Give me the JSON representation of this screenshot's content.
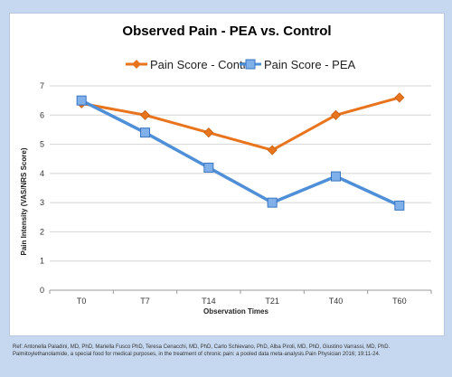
{
  "citation": "Ref: Antonella Paladini, MD, PhD, Mariella Fusco PhD, Teresa Cenacchi, MD, PhD, Carlo Schievano, PhD, Alba Piroli, MD, PhD, Giustino Varrassi, MD, PhD. Palmitoylethanolamide, a special food for medical purposes, in the treatment of chronic pain: a pooled data meta-analysis.Pain Physician 2016; 19:11-24.",
  "colors": {
    "control": "#e8751e",
    "pea": "#4f8fd8",
    "background": "#c6d8f0"
  },
  "chart_data": {
    "type": "line",
    "title": "Observed Pain - PEA vs. Control",
    "xlabel": "Observation Times",
    "ylabel": "Pain Intensity (VAS/NRS Score)",
    "categories": [
      "T0",
      "T7",
      "T14",
      "T21",
      "T40",
      "T60"
    ],
    "ylim": [
      0,
      7
    ],
    "yticks": [
      "0",
      "1",
      "2",
      "3",
      "4",
      "5",
      "6",
      "7"
    ],
    "grid": true,
    "legend_position": "top",
    "series": [
      {
        "name": "Pain Score - Control",
        "values": [
          6.4,
          6.0,
          5.4,
          4.8,
          6.0,
          6.6
        ],
        "color": "#e8751e",
        "marker": "diamond"
      },
      {
        "name": "Pain Score - PEA",
        "values": [
          6.5,
          5.4,
          4.2,
          3.0,
          3.9,
          2.9
        ],
        "color": "#4f8fd8",
        "marker": "square"
      }
    ]
  }
}
